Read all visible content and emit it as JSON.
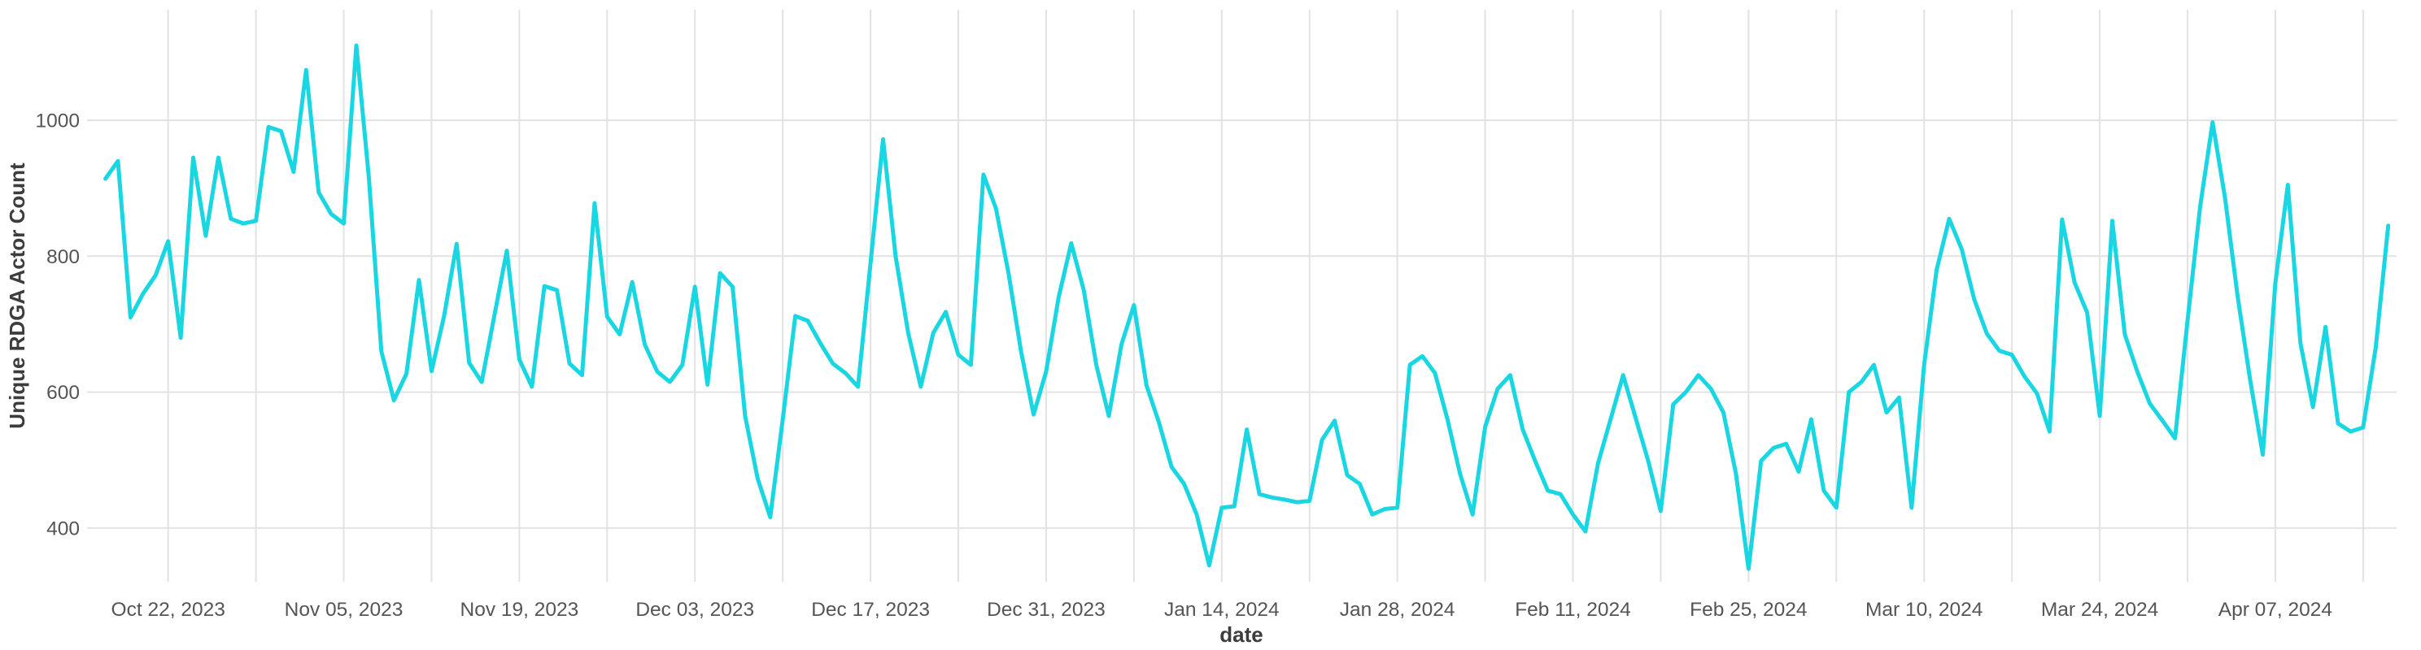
{
  "chart_data": {
    "type": "line",
    "title": "",
    "xlabel": "date",
    "ylabel": "Unique RDGA Actor Count",
    "legend": "none",
    "grid": "on",
    "background": "#ffffff",
    "gridline_color": "#e2e2e2",
    "text_color": "#555555",
    "axis_title_color": "#3d3d3d",
    "y_ticks": [
      400,
      600,
      800,
      1000
    ],
    "ylim": [
      300,
      1160
    ],
    "x_range": [
      "2023-10-17",
      "2024-04-16"
    ],
    "x_tick_labels": [
      "Oct 22, 2023",
      "Nov 05, 2023",
      "Nov 19, 2023",
      "Dec 03, 2023",
      "Dec 17, 2023",
      "Dec 31, 2023",
      "Jan 14, 2024",
      "Jan 28, 2024",
      "Feb 11, 2024",
      "Feb 25, 2024",
      "Mar 10, 2024",
      "Mar 24, 2024",
      "Apr 07, 2024"
    ],
    "x_minor_gridlines": "weekly between labeled ticks",
    "series": [
      {
        "name": "Unique RDGA Actor Count",
        "color": "#18d7e3",
        "start_date": "2023-10-17",
        "frequency": "daily",
        "values": [
          914,
          940,
          710,
          745,
          772,
          822,
          680,
          945,
          830,
          945,
          855,
          848,
          852,
          990,
          984,
          924,
          1074,
          894,
          862,
          848,
          1110,
          916,
          660,
          588,
          627,
          765,
          631,
          712,
          818,
          643,
          615,
          712,
          808,
          648,
          608,
          756,
          750,
          642,
          625,
          878,
          711,
          685,
          762,
          670,
          630,
          615,
          640,
          755,
          611,
          775,
          755,
          565,
          473,
          416,
          560,
          712,
          705,
          672,
          642,
          628,
          608,
          790,
          972,
          800,
          687,
          608,
          687,
          718,
          655,
          640,
          920,
          870,
          775,
          660,
          567,
          630,
          740,
          819,
          750,
          640,
          565,
          670,
          728,
          610,
          555,
          490,
          465,
          420,
          345,
          430,
          432,
          545,
          450,
          445,
          442,
          438,
          440,
          530,
          558,
          478,
          465,
          420,
          428,
          430,
          640,
          653,
          628,
          560,
          480,
          420,
          549,
          605,
          625,
          545,
          498,
          455,
          450,
          420,
          395,
          495,
          560,
          625,
          562,
          499,
          425,
          582,
          600,
          625,
          605,
          570,
          480,
          340,
          499,
          518,
          524,
          483,
          560,
          455,
          430,
          600,
          615,
          640,
          570,
          592,
          430,
          640,
          780,
          855,
          810,
          736,
          686,
          661,
          655,
          623,
          598,
          542,
          854,
          761,
          717,
          565,
          852,
          685,
          630,
          583,
          558,
          532,
          705,
          872,
          997,
          885,
          740,
          617,
          508,
          760,
          905,
          672,
          578,
          696,
          554,
          542,
          548,
          665,
          845
        ]
      }
    ]
  },
  "layout_values": {
    "y_axis_title": "Unique RDGA Actor Count",
    "x_axis_title": "date"
  }
}
